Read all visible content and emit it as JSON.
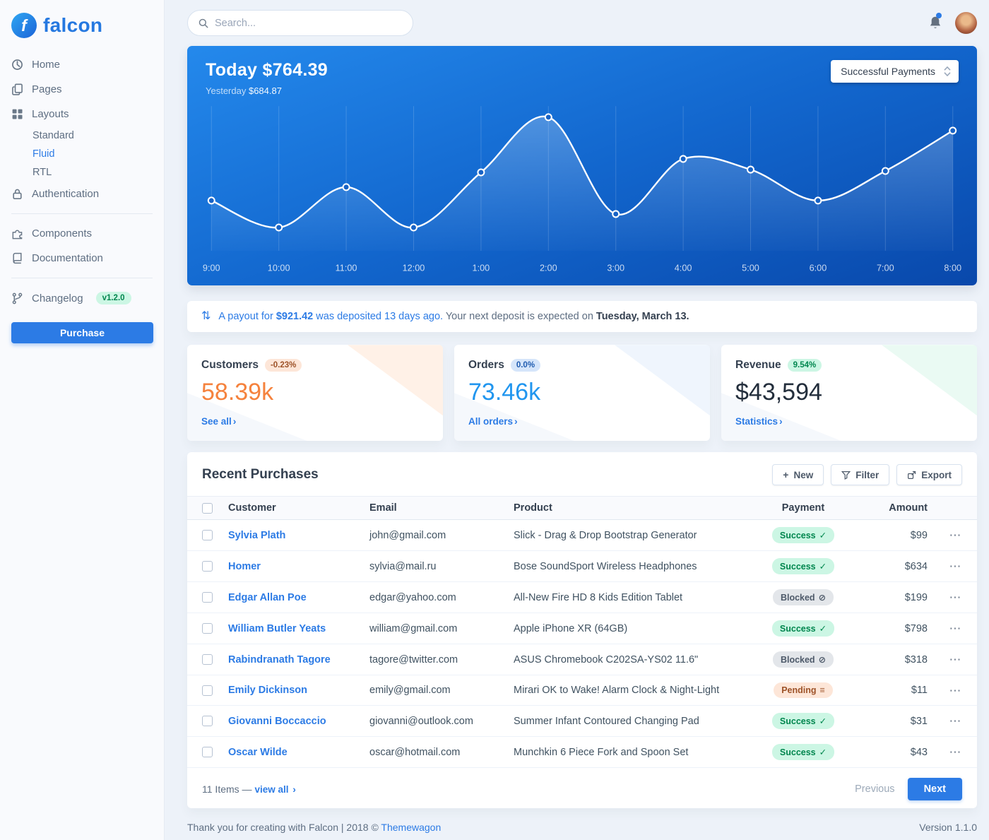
{
  "colors": {
    "accent": "#2c7be5",
    "warning": "#f5823d",
    "info": "#2196ef",
    "success": "#00864e",
    "chart_gradient_top": "#2489ec",
    "chart_gradient_bottom": "#0948ab"
  },
  "icons": {
    "plus": "+",
    "check": "✓",
    "ban": "⊘",
    "stream": "≡",
    "chevron_right": "›",
    "exchange": "⇅",
    "ellipsis": "⋯"
  },
  "brand": {
    "name": "falcon",
    "icon_letter": "f"
  },
  "topbar": {
    "search_placeholder": "Search..."
  },
  "sidebar": {
    "home": "Home",
    "pages": "Pages",
    "layouts": "Layouts",
    "layouts_sub": [
      "Standard",
      "Fluid",
      "RTL"
    ],
    "authentication": "Authentication",
    "components": "Components",
    "documentation": "Documentation",
    "changelog": "Changelog",
    "changelog_badge": "v1.2.0",
    "purchase": "Purchase"
  },
  "chart_card": {
    "title": "Today $764.39",
    "subtitle_label": "Yesterday",
    "subtitle_value": "$684.87",
    "select_value": "Successful Payments"
  },
  "chart_data": {
    "type": "line",
    "categories": [
      "9:00",
      "10:00",
      "11:00",
      "12:00",
      "1:00",
      "2:00",
      "3:00",
      "4:00",
      "5:00",
      "6:00",
      "7:00",
      "8:00"
    ],
    "series": [
      {
        "name": "Successful Payments",
        "values": [
          33,
          13,
          43,
          13,
          54,
          95,
          23,
          64,
          56,
          33,
          55,
          85
        ]
      }
    ],
    "ylim": [
      0,
      100
    ],
    "grid": "vertical-only",
    "legend": "none",
    "line_color": "#ffffff",
    "marker": "circle",
    "area_fill": "white-fade"
  },
  "payout": {
    "link_prefix": "A payout for",
    "amount": "$921.42",
    "link_suffix": "was deposited 13 days ago.",
    "text": "Your next deposit is expected on",
    "date": "Tuesday, March 13."
  },
  "stats": [
    {
      "title": "Customers",
      "badge": "-0.23%",
      "badge_type": "warning",
      "value": "58.39k",
      "link": "See all"
    },
    {
      "title": "Orders",
      "badge": "0.0%",
      "badge_type": "info",
      "value": "73.46k",
      "link": "All orders"
    },
    {
      "title": "Revenue",
      "badge": "9.54%",
      "badge_type": "success",
      "value": "$43,594",
      "link": "Statistics"
    }
  ],
  "table": {
    "title": "Recent Purchases",
    "buttons": {
      "new": "New",
      "filter": "Filter",
      "export": "Export"
    },
    "headers": [
      "Customer",
      "Email",
      "Product",
      "Payment",
      "Amount"
    ],
    "rows": [
      {
        "customer": "Sylvia Plath",
        "email": "john@gmail.com",
        "product": "Slick - Drag & Drop Bootstrap Generator",
        "payment": "Success",
        "payment_type": "success",
        "amount": "$99"
      },
      {
        "customer": "Homer",
        "email": "sylvia@mail.ru",
        "product": "Bose SoundSport Wireless Headphones",
        "payment": "Success",
        "payment_type": "success",
        "amount": "$634"
      },
      {
        "customer": "Edgar Allan Poe",
        "email": "edgar@yahoo.com",
        "product": "All-New Fire HD 8 Kids Edition Tablet",
        "payment": "Blocked",
        "payment_type": "blocked",
        "amount": "$199"
      },
      {
        "customer": "William Butler Yeats",
        "email": "william@gmail.com",
        "product": "Apple iPhone XR (64GB)",
        "payment": "Success",
        "payment_type": "success",
        "amount": "$798"
      },
      {
        "customer": "Rabindranath Tagore",
        "email": "tagore@twitter.com",
        "product": "ASUS Chromebook C202SA-YS02 11.6\"",
        "payment": "Blocked",
        "payment_type": "blocked",
        "amount": "$318"
      },
      {
        "customer": "Emily Dickinson",
        "email": "emily@gmail.com",
        "product": "Mirari OK to Wake! Alarm Clock & Night-Light",
        "payment": "Pending",
        "payment_type": "pending",
        "amount": "$11"
      },
      {
        "customer": "Giovanni Boccaccio",
        "email": "giovanni@outlook.com",
        "product": "Summer Infant Contoured Changing Pad",
        "payment": "Success",
        "payment_type": "success",
        "amount": "$31"
      },
      {
        "customer": "Oscar Wilde",
        "email": "oscar@hotmail.com",
        "product": "Munchkin 6 Piece Fork and Spoon Set",
        "payment": "Success",
        "payment_type": "success",
        "amount": "$43"
      }
    ],
    "footer": {
      "items_label": "11 Items —",
      "view_all": "view all",
      "previous": "Previous",
      "next": "Next"
    }
  },
  "footer": {
    "text": "Thank you for creating with Falcon | 2018 ©",
    "link": "Themewagon",
    "version": "Version 1.1.0"
  }
}
